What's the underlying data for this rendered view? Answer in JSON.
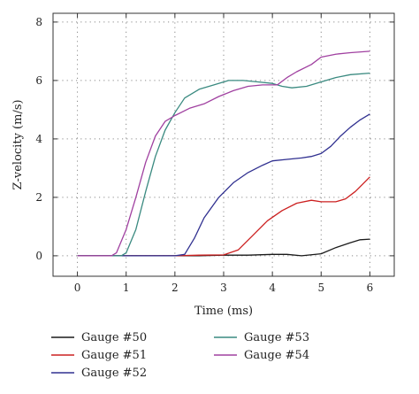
{
  "chart_data": {
    "type": "line",
    "title": "",
    "xlabel": "Time (ms)",
    "ylabel": "Z-velocity (m/s)",
    "xlim": [
      -0.5,
      6.5
    ],
    "ylim": [
      -0.7,
      8.3
    ],
    "xticks": [
      0,
      1,
      2,
      3,
      4,
      5,
      6
    ],
    "yticks": [
      0,
      2,
      4,
      6,
      8
    ],
    "grid": true,
    "legend_position": "bottom",
    "series": [
      {
        "name": "Gauge #50",
        "color": "#1a1a1a",
        "points": [
          [
            0,
            0
          ],
          [
            1,
            0
          ],
          [
            2,
            0
          ],
          [
            2.5,
            0
          ],
          [
            3,
            0.02
          ],
          [
            3.5,
            0.02
          ],
          [
            4,
            0.05
          ],
          [
            4.3,
            0.05
          ],
          [
            4.6,
            0.0
          ],
          [
            5,
            0.07
          ],
          [
            5.3,
            0.28
          ],
          [
            5.6,
            0.45
          ],
          [
            5.8,
            0.55
          ],
          [
            6,
            0.57
          ]
        ]
      },
      {
        "name": "Gauge #51",
        "color": "#cc2020",
        "points": [
          [
            0,
            0
          ],
          [
            2,
            0
          ],
          [
            2.5,
            0.02
          ],
          [
            3,
            0.03
          ],
          [
            3.3,
            0.2
          ],
          [
            3.6,
            0.7
          ],
          [
            3.9,
            1.2
          ],
          [
            4.2,
            1.55
          ],
          [
            4.5,
            1.8
          ],
          [
            4.8,
            1.9
          ],
          [
            5.0,
            1.85
          ],
          [
            5.3,
            1.85
          ],
          [
            5.5,
            1.95
          ],
          [
            5.7,
            2.2
          ],
          [
            5.85,
            2.45
          ],
          [
            6,
            2.7
          ]
        ]
      },
      {
        "name": "Gauge #52",
        "color": "#303090",
        "points": [
          [
            0,
            0
          ],
          [
            2,
            0
          ],
          [
            2.2,
            0.05
          ],
          [
            2.4,
            0.6
          ],
          [
            2.6,
            1.3
          ],
          [
            2.9,
            2.0
          ],
          [
            3.2,
            2.5
          ],
          [
            3.5,
            2.85
          ],
          [
            3.8,
            3.1
          ],
          [
            4.0,
            3.25
          ],
          [
            4.3,
            3.3
          ],
          [
            4.6,
            3.35
          ],
          [
            4.8,
            3.4
          ],
          [
            5.0,
            3.5
          ],
          [
            5.2,
            3.75
          ],
          [
            5.4,
            4.1
          ],
          [
            5.6,
            4.4
          ],
          [
            5.8,
            4.65
          ],
          [
            6,
            4.85
          ]
        ]
      },
      {
        "name": "Gauge #53",
        "color": "#3a8a80",
        "points": [
          [
            0,
            0
          ],
          [
            0.9,
            0
          ],
          [
            1.0,
            0.1
          ],
          [
            1.2,
            0.9
          ],
          [
            1.4,
            2.2
          ],
          [
            1.6,
            3.4
          ],
          [
            1.8,
            4.3
          ],
          [
            2.0,
            4.9
          ],
          [
            2.2,
            5.4
          ],
          [
            2.5,
            5.7
          ],
          [
            2.8,
            5.85
          ],
          [
            3.1,
            6.0
          ],
          [
            3.4,
            6.0
          ],
          [
            3.7,
            5.95
          ],
          [
            4.0,
            5.9
          ],
          [
            4.2,
            5.8
          ],
          [
            4.4,
            5.75
          ],
          [
            4.7,
            5.8
          ],
          [
            5.0,
            5.95
          ],
          [
            5.3,
            6.1
          ],
          [
            5.6,
            6.2
          ],
          [
            6,
            6.25
          ]
        ]
      },
      {
        "name": "Gauge #54",
        "color": "#a040a0",
        "points": [
          [
            0,
            0
          ],
          [
            0.7,
            0
          ],
          [
            0.8,
            0.1
          ],
          [
            1.0,
            0.9
          ],
          [
            1.2,
            2.0
          ],
          [
            1.4,
            3.2
          ],
          [
            1.6,
            4.1
          ],
          [
            1.8,
            4.6
          ],
          [
            2.0,
            4.8
          ],
          [
            2.3,
            5.05
          ],
          [
            2.6,
            5.2
          ],
          [
            2.9,
            5.45
          ],
          [
            3.2,
            5.65
          ],
          [
            3.5,
            5.8
          ],
          [
            3.8,
            5.85
          ],
          [
            4.1,
            5.85
          ],
          [
            4.3,
            6.1
          ],
          [
            4.5,
            6.3
          ],
          [
            4.8,
            6.55
          ],
          [
            5.0,
            6.8
          ],
          [
            5.3,
            6.9
          ],
          [
            5.6,
            6.95
          ],
          [
            6,
            7.0
          ]
        ]
      }
    ]
  }
}
